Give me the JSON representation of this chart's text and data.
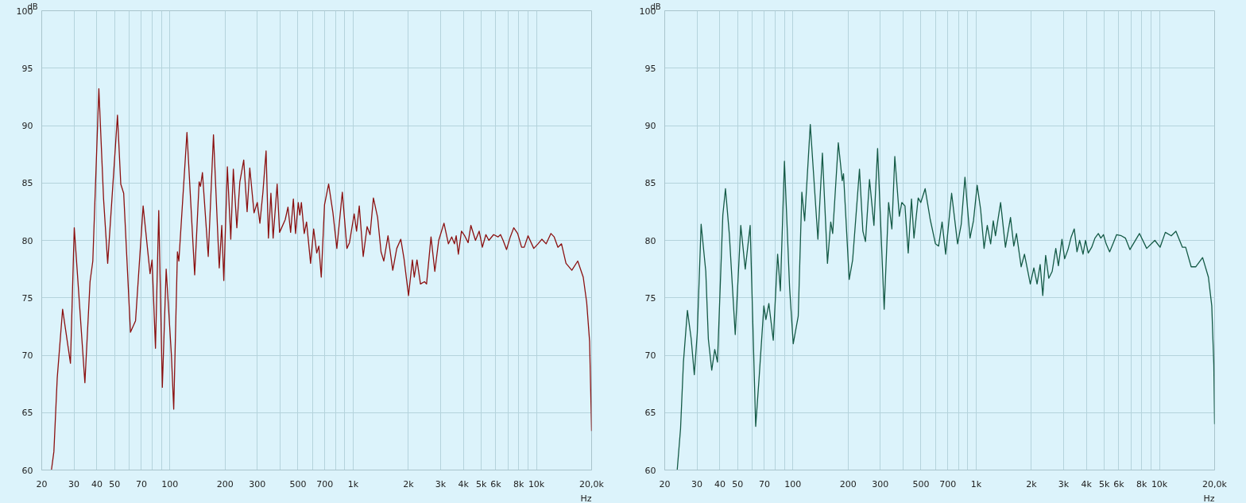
{
  "chart_data": [
    {
      "type": "line",
      "ylabel": "dB",
      "xlabel": "Hz",
      "log": "x",
      "grid": true,
      "xlim": [
        20,
        20000
      ],
      "ylim": [
        60,
        100
      ],
      "xticks": [
        20,
        30,
        40,
        50,
        {
          "value": 60,
          "label": null
        },
        70,
        {
          "value": 80,
          "label": null
        },
        {
          "value": 90,
          "label": null
        },
        100,
        200,
        300,
        {
          "value": 400,
          "label": null
        },
        500,
        {
          "value": 600,
          "label": null
        },
        700,
        {
          "value": 800,
          "label": null
        },
        {
          "value": 900,
          "label": null
        },
        {
          "value": 1000,
          "label": "1k"
        },
        {
          "value": 2000,
          "label": "2k"
        },
        {
          "value": 3000,
          "label": "3k"
        },
        {
          "value": 4000,
          "label": "4k"
        },
        {
          "value": 5000,
          "label": "5k"
        },
        {
          "value": 6000,
          "label": "6k"
        },
        {
          "value": 7000,
          "label": null
        },
        {
          "value": 8000,
          "label": "8k"
        },
        {
          "value": 9000,
          "label": null
        },
        {
          "value": 10000,
          "label": "10k"
        },
        {
          "value": 20000,
          "label": "20,0k"
        }
      ],
      "yticks": [
        60,
        65,
        70,
        75,
        80,
        85,
        90,
        95,
        100
      ],
      "series": [
        {
          "color": "#8b1010",
          "x": [
            22.6,
            23.3,
            24.3,
            26.0,
            28.7,
            30.1,
            34.4,
            36.7,
            38.0,
            41.0,
            43.5,
            45.8,
            51.8,
            54,
            56,
            61,
            65,
            71.5,
            78,
            80,
            83.5,
            87,
            91,
            95.5,
            102,
            105,
            110,
            112,
            124,
            136.6,
            144.5,
            147,
            150.6,
            162,
            173,
            186,
            192,
            197,
            206,
            215,
            222,
            232,
            241,
            253,
            264,
            273,
            288,
            300,
            310,
            322,
            335,
            345,
            356,
            366,
            385,
            397,
            426,
            441,
            456,
            472,
            485,
            502,
            512,
            522,
            541,
            557,
            586,
            609,
            633,
            650,
            670,
            698,
            735,
            776,
            815,
            873,
            925,
            955,
            1013,
            1044,
            1080,
            1135,
            1192,
            1237,
            1290,
            1360,
            1420,
            1470,
            1550,
            1645,
            1730,
            1820,
            1895,
            2005,
            2105,
            2155,
            2230,
            2330,
            2450,
            2515,
            2660,
            2790,
            2930,
            3130,
            3310,
            3450,
            3570,
            3650,
            3750,
            3900,
            4060,
            4240,
            4390,
            4650,
            4870,
            5070,
            5300,
            5500,
            5840,
            6170,
            6370,
            6580,
            6870,
            7200,
            7520,
            7900,
            8300,
            8580,
            9000,
            9670,
            10200,
            10700,
            11300,
            12000,
            12500,
            13100,
            13700,
            14500,
            15600,
            16800,
            18000,
            18800,
            19500,
            20000
          ],
          "values": [
            60.0,
            61.6,
            68.0,
            74.0,
            69.3,
            81.1,
            67.6,
            76.4,
            78.2,
            93.2,
            83.6,
            78.0,
            90.9,
            84.9,
            84.1,
            72.0,
            73.0,
            83.0,
            77.1,
            78.3,
            70.6,
            82.6,
            67.2,
            77.5,
            70.0,
            65.3,
            79.0,
            78.2,
            89.4,
            77.0,
            85.1,
            84.7,
            85.9,
            78.6,
            89.2,
            77.6,
            81.3,
            76.5,
            86.4,
            80.1,
            86.2,
            81.1,
            85.1,
            87.0,
            82.5,
            86.3,
            82.4,
            83.3,
            81.5,
            84.2,
            87.8,
            80.2,
            84.1,
            80.2,
            84.9,
            80.7,
            81.8,
            82.9,
            80.7,
            83.6,
            80.6,
            83.3,
            82.2,
            83.3,
            80.6,
            81.6,
            78.0,
            81.0,
            78.9,
            79.5,
            76.8,
            83.1,
            84.9,
            82.4,
            79.3,
            84.2,
            79.3,
            79.8,
            82.3,
            80.8,
            83.0,
            78.6,
            81.2,
            80.5,
            83.7,
            82.0,
            79.0,
            78.2,
            80.4,
            77.4,
            79.3,
            80.1,
            78.4,
            75.2,
            78.3,
            76.8,
            78.3,
            76.2,
            76.4,
            76.2,
            80.3,
            77.3,
            80.0,
            81.5,
            79.7,
            80.3,
            79.7,
            80.4,
            78.8,
            80.8,
            80.4,
            79.8,
            81.3,
            80.0,
            80.8,
            79.4,
            80.5,
            80.0,
            80.5,
            80.3,
            80.5,
            80.0,
            79.2,
            80.3,
            81.1,
            80.6,
            79.4,
            79.4,
            80.4,
            79.3,
            79.7,
            80.1,
            79.7,
            80.6,
            80.3,
            79.4,
            79.7,
            78.0,
            77.4,
            78.2,
            76.8,
            74.6,
            71.2,
            63.4
          ]
        }
      ]
    },
    {
      "type": "line",
      "ylabel": "dB",
      "xlabel": "Hz",
      "log": "x",
      "grid": true,
      "xlim": [
        20,
        20000
      ],
      "ylim": [
        60,
        100
      ],
      "xticks": [
        20,
        30,
        40,
        50,
        {
          "value": 60,
          "label": null
        },
        70,
        {
          "value": 80,
          "label": null
        },
        {
          "value": 90,
          "label": null
        },
        100,
        200,
        300,
        {
          "value": 400,
          "label": null
        },
        500,
        {
          "value": 600,
          "label": null
        },
        700,
        {
          "value": 800,
          "label": null
        },
        {
          "value": 900,
          "label": null
        },
        {
          "value": 1000,
          "label": "1k"
        },
        {
          "value": 2000,
          "label": "2k"
        },
        {
          "value": 3000,
          "label": "3k"
        },
        {
          "value": 4000,
          "label": "4k"
        },
        {
          "value": 5000,
          "label": "5k"
        },
        {
          "value": 6000,
          "label": "6k"
        },
        {
          "value": 7000,
          "label": null
        },
        {
          "value": 8000,
          "label": "8k"
        },
        {
          "value": 9000,
          "label": null
        },
        {
          "value": 10000,
          "label": "10k"
        },
        {
          "value": 20000,
          "label": "20,0k"
        }
      ],
      "yticks": [
        60,
        65,
        70,
        75,
        80,
        85,
        90,
        95,
        100
      ],
      "series": [
        {
          "color": "#145a46",
          "x": [
            23.4,
            24.4,
            25.3,
            26.6,
            27.9,
            29.0,
            30.1,
            31.6,
            33.5,
            34.6,
            36.1,
            37.5,
            38.8,
            41.5,
            42.9,
            45,
            48.5,
            52,
            55,
            58.5,
            62.7,
            65.5,
            69.5,
            71.3,
            74,
            78.2,
            82.6,
            85.5,
            90,
            96,
            100.5,
            107,
            112,
            116,
            124.5,
            137,
            145,
            154.5,
            161,
            165,
            177,
            186,
            189,
            203,
            212,
            231,
            241,
            249,
            262,
            277,
            290,
            315,
            333,
            347,
            360,
            381,
            393,
            409,
            426,
            444,
            458,
            483,
            499,
            527,
            562,
            600,
            624,
            652,
            682,
            735,
            792,
            829,
            869,
            926,
            967,
            1013,
            1058,
            1105,
            1150,
            1200,
            1240,
            1275,
            1360,
            1445,
            1540,
            1605,
            1660,
            1760,
            1835,
            1975,
            2065,
            2150,
            2235,
            2310,
            2395,
            2490,
            2600,
            2720,
            2810,
            2940,
            3040,
            3170,
            3300,
            3430,
            3550,
            3670,
            3830,
            3950,
            4090,
            4270,
            4450,
            4640,
            4790,
            4950,
            5120,
            5350,
            5580,
            5840,
            6200,
            6520,
            6900,
            7780,
            8520,
            9440,
            10080,
            10770,
            11600,
            12300,
            13350,
            13900,
            14900,
            15800,
            17200,
            18500,
            19300,
            19800,
            20000
          ],
          "values": [
            60.0,
            63.6,
            69.4,
            73.9,
            71.4,
            68.3,
            71.9,
            81.4,
            77.3,
            71.4,
            68.7,
            70.5,
            69.4,
            82.2,
            84.5,
            80.6,
            71.8,
            81.3,
            77.5,
            81.3,
            63.8,
            68.1,
            74.3,
            73.1,
            74.5,
            71.3,
            78.8,
            75.6,
            86.9,
            75.9,
            71.0,
            73.4,
            84.2,
            81.7,
            90.1,
            80.1,
            87.6,
            78.0,
            81.6,
            80.6,
            88.5,
            85.2,
            85.8,
            76.6,
            78.3,
            86.2,
            80.8,
            79.9,
            85.3,
            81.3,
            88.0,
            74.0,
            83.3,
            81.0,
            87.3,
            82.1,
            83.3,
            83.0,
            78.9,
            83.6,
            80.2,
            83.7,
            83.3,
            84.5,
            81.8,
            79.7,
            79.5,
            81.6,
            78.8,
            84.1,
            79.7,
            81.4,
            85.5,
            80.2,
            81.7,
            84.8,
            82.7,
            79.3,
            81.3,
            79.7,
            81.7,
            80.4,
            83.3,
            79.4,
            82.0,
            79.5,
            80.6,
            77.7,
            78.8,
            76.2,
            77.6,
            76.2,
            77.9,
            75.2,
            78.7,
            76.7,
            77.3,
            79.3,
            77.8,
            80.1,
            78.4,
            79.2,
            80.3,
            81.0,
            79.0,
            80.0,
            78.8,
            80.0,
            78.9,
            79.4,
            80.2,
            80.6,
            80.2,
            80.5,
            79.7,
            79.0,
            79.7,
            80.5,
            80.4,
            80.2,
            79.2,
            80.6,
            79.3,
            80.0,
            79.4,
            80.7,
            80.4,
            80.8,
            79.4,
            79.4,
            77.7,
            77.7,
            78.5,
            76.8,
            74.3,
            69.2,
            64.0
          ]
        }
      ]
    }
  ]
}
